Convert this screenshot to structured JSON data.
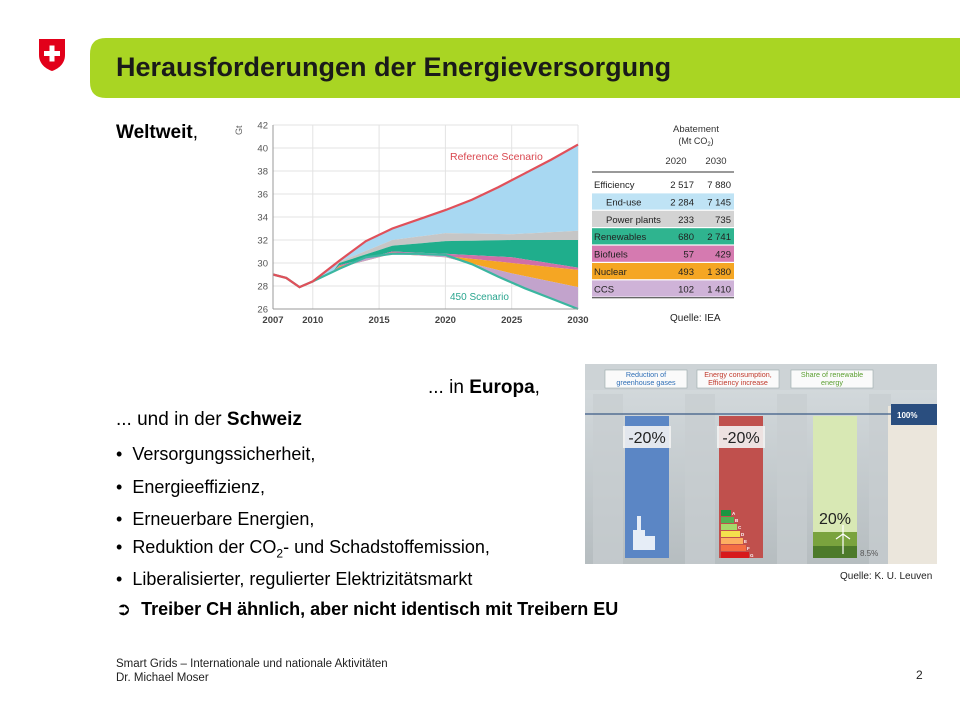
{
  "title": "Herausforderungen der Energieversorgung",
  "world": {
    "bold": "Weltweit",
    "rest": ","
  },
  "europe": {
    "pre": "... in ",
    "bold": "Europa",
    "post": ","
  },
  "swiss": {
    "pre": "... und in der ",
    "bold": "Schweiz"
  },
  "bullets": [
    "Versorgungssicherheit,",
    "Energieeffizienz,",
    "Erneuerbare Energien,",
    {
      "pre": "Reduktion der CO",
      "sub": "2",
      "post": "- und Schadstoffemission,"
    },
    "Liberalisierter, regulierter Elektrizitätsmarkt"
  ],
  "conclusion": {
    "arrow": "➲",
    "text": "Treiber CH ähnlich, aber nicht identisch mit Treibern EU"
  },
  "source_iea": "Quelle: IEA",
  "source_eu": "Quelle: K. U. Leuven",
  "footer": {
    "line1": "Smart Grids – Internationale und nationale Aktivitäten",
    "line2": "Dr. Michael Moser"
  },
  "page_number": "2",
  "colors": {
    "banner": "#a9d523",
    "flag": "#e2001a",
    "reference_line": "#e0505a",
    "scenario450_line": "#3bb6a0"
  },
  "chart_data": [
    {
      "type": "area",
      "ylabel": "Gt",
      "ylim": [
        26,
        42
      ],
      "xlim": [
        2007,
        2030
      ],
      "x_ticks": [
        2007,
        2010,
        2015,
        2020,
        2025,
        2030
      ],
      "y_ticks": [
        26,
        28,
        30,
        32,
        34,
        36,
        38,
        40,
        42
      ],
      "annotations": [
        "Reference Scenario",
        "450 Scenario"
      ],
      "reference": {
        "x": [
          2007,
          2008,
          2009,
          2010,
          2012,
          2014,
          2016,
          2018,
          2020,
          2022,
          2024,
          2026,
          2028,
          2030
        ],
        "y": [
          29.0,
          28.7,
          27.9,
          28.4,
          30.2,
          31.9,
          33.0,
          33.8,
          34.6,
          35.5,
          36.6,
          37.8,
          39.0,
          40.3
        ]
      },
      "scenario450": {
        "x": [
          2007,
          2008,
          2009,
          2010,
          2012,
          2014,
          2016,
          2018,
          2020,
          2022,
          2024,
          2026,
          2028,
          2030
        ],
        "y": [
          29.0,
          28.7,
          27.9,
          28.4,
          29.5,
          30.5,
          30.8,
          30.8,
          30.7,
          29.9,
          28.8,
          27.8,
          26.9,
          26.0
        ]
      },
      "wedge_colors": [
        "#a8d8f2",
        "#c6c6c6",
        "#1fae8c",
        "#d06fa8",
        "#f5a623",
        "#c2a3cc"
      ],
      "wedge_boundaries": [
        {
          "x": [
            2012,
            2016,
            2020,
            2025,
            2030
          ],
          "y": [
            30.1,
            32.0,
            32.6,
            32.5,
            32.8
          ]
        },
        {
          "x": [
            2012,
            2016,
            2020,
            2025,
            2030
          ],
          "y": [
            30.0,
            31.5,
            31.9,
            32.0,
            32.0
          ]
        },
        {
          "x": [
            2012,
            2016,
            2020,
            2025,
            2030
          ],
          "y": [
            29.8,
            31.0,
            30.8,
            30.5,
            29.6
          ]
        },
        {
          "x": [
            2012,
            2016,
            2020,
            2025,
            2030
          ],
          "y": [
            29.7,
            30.9,
            30.6,
            30.0,
            29.4
          ]
        },
        {
          "x": [
            2012,
            2016,
            2020,
            2025,
            2030
          ],
          "y": [
            29.6,
            30.8,
            30.5,
            29.1,
            27.9
          ]
        }
      ]
    },
    {
      "type": "table",
      "title": "Abatement",
      "subtitle_pre": "(Mt CO",
      "subtitle_sub": "2",
      "subtitle_post": ")",
      "columns": [
        "2020",
        "2030"
      ],
      "rows": [
        {
          "label": "Efficiency",
          "v2020": "2 517",
          "v2030": "7 880",
          "color": "#ffffff",
          "indent": false
        },
        {
          "label": "End-use",
          "v2020": "2 284",
          "v2030": "7 145",
          "color": "#bfe3f5",
          "indent": true
        },
        {
          "label": "Power plants",
          "v2020": "233",
          "v2030": "735",
          "color": "#d3d3d3",
          "indent": true
        },
        {
          "label": "Renewables",
          "v2020": "680",
          "v2030": "2 741",
          "color": "#2fb48f",
          "indent": false
        },
        {
          "label": "Biofuels",
          "v2020": "57",
          "v2030": "429",
          "color": "#d57ab0",
          "indent": false
        },
        {
          "label": "Nuclear",
          "v2020": "493",
          "v2030": "1 380",
          "color": "#f5a623",
          "indent": false
        },
        {
          "label": "CCS",
          "v2020": "102",
          "v2030": "1 410",
          "color": "#cfb3d8",
          "indent": false
        }
      ]
    },
    {
      "type": "bar",
      "headers": [
        [
          "Reduction of",
          "greenhouse gases"
        ],
        [
          "Energy consumption,",
          "Efficiency increase"
        ],
        [
          "Share of renewable",
          "energy"
        ]
      ],
      "header_colors": [
        "#2f6fb6",
        "#c0392b",
        "#5a9e2f"
      ],
      "value_labels": [
        "-20%",
        "-20%",
        "20%"
      ],
      "bar_colors": [
        "#5b86c5",
        "#c0504d",
        "#d8e8b4"
      ],
      "reference_label": "100%",
      "baseline_label": "8.5%",
      "efficiency_classes": [
        "A",
        "B",
        "C",
        "D",
        "E",
        "F",
        "G"
      ],
      "efficiency_colors": [
        "#1a9641",
        "#52b151",
        "#a6d96a",
        "#f4e04d",
        "#fdae61",
        "#f46d43",
        "#d7191c"
      ]
    }
  ]
}
